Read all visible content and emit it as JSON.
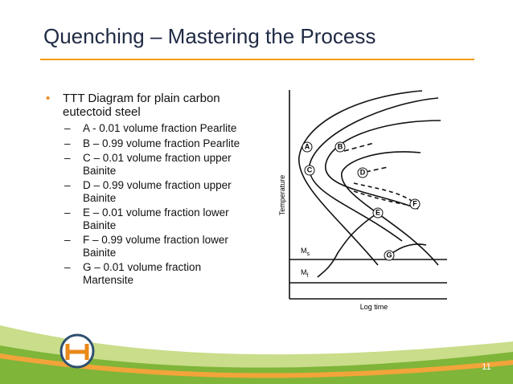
{
  "title": "Quenching – Mastering the Process",
  "bullets": [
    {
      "text": "TTT Diagram for plain carbon eutectoid steel",
      "sub": [
        "A - 0.01 volume fraction Pearlite",
        "B – 0.99 volume fraction Pearlite",
        "C – 0.01 volume fraction upper Bainite",
        "D – 0.99 volume fraction upper Bainite",
        "E – 0.01 volume fraction lower Bainite",
        "F – 0.99 volume fraction lower Bainite",
        "G – 0.01 volume fraction Martensite"
      ]
    }
  ],
  "diagram": {
    "y_axis_label": "Temperature",
    "x_axis_label": "Log time",
    "points": [
      "A",
      "B",
      "C",
      "D",
      "E",
      "F",
      "G"
    ],
    "ms": {
      "base": "M",
      "sub": "s"
    },
    "mf": {
      "base": "M",
      "sub": "f"
    }
  },
  "page_number": "11"
}
